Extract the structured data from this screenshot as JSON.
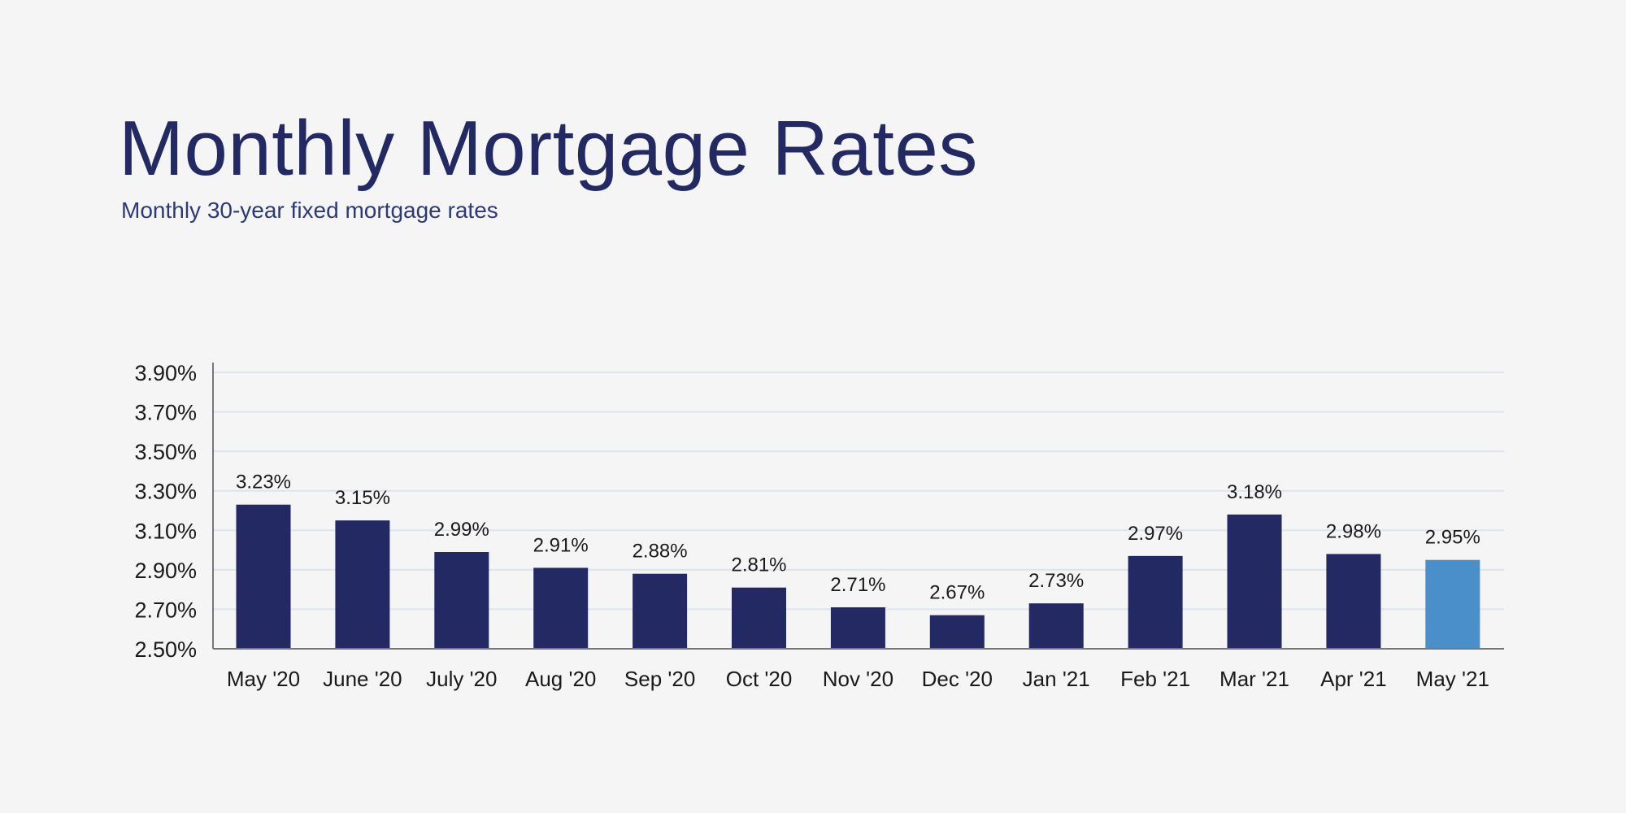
{
  "chart_data": {
    "type": "bar",
    "title": "Monthly Mortgage Rates",
    "subtitle": "Monthly 30-year fixed mortgage rates",
    "xlabel": "",
    "ylabel": "",
    "categories": [
      "May '20",
      "June '20",
      "July '20",
      "Aug '20",
      "Sep '20",
      "Oct '20",
      "Nov '20",
      "Dec '20",
      "Jan '21",
      "Feb '21",
      "Mar '21",
      "Apr '21",
      "May '21"
    ],
    "values": [
      3.23,
      3.15,
      2.99,
      2.91,
      2.88,
      2.81,
      2.71,
      2.67,
      2.73,
      2.97,
      3.18,
      2.98,
      2.95
    ],
    "data_labels": [
      "3.23%",
      "3.15%",
      "2.99%",
      "2.91%",
      "2.88%",
      "2.81%",
      "2.71%",
      "2.67%",
      "2.73%",
      "2.97%",
      "3.18%",
      "2.98%",
      "2.95%"
    ],
    "ylim": [
      2.5,
      3.9
    ],
    "yticks": [
      2.5,
      2.7,
      2.9,
      3.1,
      3.3,
      3.5,
      3.7,
      3.9
    ],
    "ytick_labels": [
      "2.50%",
      "2.70%",
      "2.90%",
      "3.10%",
      "3.30%",
      "3.50%",
      "3.70%",
      "3.90%"
    ],
    "grid": true,
    "legend": "none",
    "colors": {
      "bar": "#232a63",
      "highlight": "#4b8fca",
      "highlight_index": 12,
      "grid": "#dde4f0",
      "title": "#232a63"
    }
  }
}
